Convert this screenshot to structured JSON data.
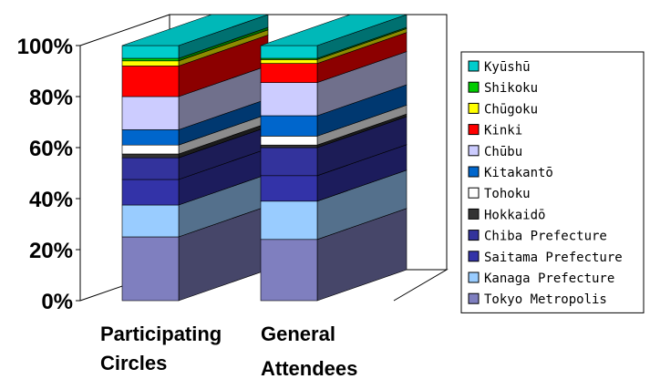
{
  "chart_data": {
    "type": "bar",
    "subtype": "stacked-100-3d",
    "title": "",
    "xlabel": "",
    "ylabel": "",
    "ylim": [
      0,
      100
    ],
    "yticks": [
      "0%",
      "20%",
      "40%",
      "60%",
      "80%",
      "100%"
    ],
    "grid": false,
    "legend_position": "right",
    "categories": [
      [
        "Participating",
        "Circles"
      ],
      [
        "General",
        "Attendees"
      ]
    ],
    "series": [
      {
        "name": "Tokyo Metropolis",
        "color": "#7f7fbf",
        "values": [
          25,
          24
        ]
      },
      {
        "name": "Kanaga Prefecture",
        "color": "#99ccff",
        "values": [
          12.5,
          15
        ]
      },
      {
        "name": "Saitama Prefecture",
        "color": "#3333a8",
        "values": [
          10,
          10
        ]
      },
      {
        "name": "Chiba Prefecture",
        "color": "#33339c",
        "values": [
          8.5,
          11
        ]
      },
      {
        "name": "Hokkaidō",
        "color": "#333333",
        "values": [
          1.5,
          1
        ]
      },
      {
        "name": "Tohoku",
        "color": "#ffffff",
        "values": [
          3.5,
          3.5
        ]
      },
      {
        "name": "Kitakantō",
        "color": "#0066cc",
        "values": [
          6,
          8
        ]
      },
      {
        "name": "Chūbu",
        "color": "#ccccff",
        "values": [
          13,
          13
        ]
      },
      {
        "name": "Kinki",
        "color": "#ff0000",
        "values": [
          12,
          7.5
        ]
      },
      {
        "name": "Chūgoku",
        "color": "#ffff00",
        "values": [
          2,
          1.5
        ]
      },
      {
        "name": "Shikoku",
        "color": "#00cc00",
        "values": [
          1,
          0.5
        ]
      },
      {
        "name": "Kyūshū",
        "color": "#00cccc",
        "values": [
          5,
          5
        ]
      }
    ]
  }
}
